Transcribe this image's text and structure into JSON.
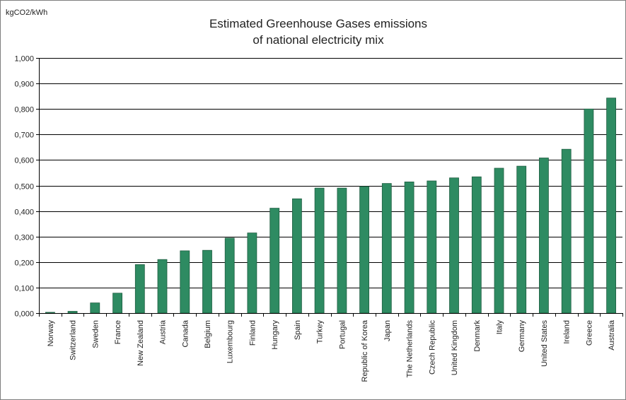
{
  "chart_data": {
    "type": "bar",
    "title_line1": "Estimated Greenhouse Gases emissions",
    "title_line2": "of national electricity mix",
    "ylabel": "kgCO2/kWh",
    "xlabel": "",
    "ylim": [
      0,
      1.0
    ],
    "yticks": [
      0.0,
      0.1,
      0.2,
      0.3,
      0.4,
      0.5,
      0.6,
      0.7,
      0.8,
      0.9,
      1.0
    ],
    "ytick_labels": [
      "0,000",
      "0,100",
      "0,200",
      "0,300",
      "0,400",
      "0,500",
      "0,600",
      "0,700",
      "0,800",
      "0,900",
      "1,000"
    ],
    "grid": true,
    "categories": [
      "Norway",
      "Switzerland",
      "Sweden",
      "France",
      "New Zealand",
      "Austria",
      "Canada",
      "Belgium",
      "Luxembourg",
      "Finland",
      "Hungary",
      "Spain",
      "Turkey",
      "Portugal",
      "Republic of Korea",
      "Japan",
      "The Netherlands",
      "Czech Republic",
      "United Kingdom",
      "Denmark",
      "Italy",
      "Germany",
      "United States",
      "Ireland",
      "Greece",
      "Australia"
    ],
    "values": [
      0.003,
      0.007,
      0.04,
      0.078,
      0.19,
      0.21,
      0.244,
      0.246,
      0.294,
      0.314,
      0.411,
      0.448,
      0.49,
      0.49,
      0.496,
      0.508,
      0.514,
      0.518,
      0.53,
      0.534,
      0.568,
      0.576,
      0.608,
      0.642,
      0.8,
      0.843
    ],
    "bar_color": "#2e8b62",
    "bar_edge_color": "#1f5e42"
  }
}
